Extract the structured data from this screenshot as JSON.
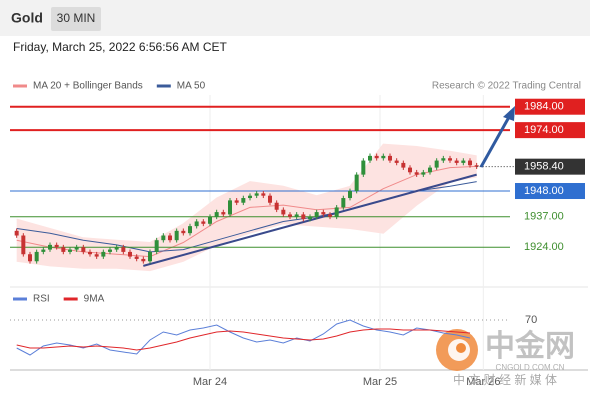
{
  "chart_data": {
    "type": "candlestick",
    "title": "Gold",
    "timeframe": "30 MIN",
    "subtitle": "Friday, March 25, 2022 6:56:56 AM CET",
    "source": "Research © 2022 Trading Central",
    "up_color": "#2f8f3a",
    "down_color": "#c73232",
    "x": [
      0,
      1,
      2,
      3,
      4,
      5,
      6,
      7,
      8,
      9,
      10,
      11,
      12,
      13,
      14,
      15,
      16,
      17,
      18,
      19,
      20,
      21,
      22,
      23,
      24,
      25,
      26,
      27,
      28,
      29,
      30,
      31,
      32,
      33,
      34,
      35,
      36,
      37,
      38,
      39,
      40,
      41,
      42,
      43,
      44,
      45,
      46,
      47,
      48,
      49,
      50,
      51,
      52,
      53,
      54,
      55,
      56,
      57,
      58,
      59,
      60,
      61,
      62,
      63,
      64,
      65,
      66,
      67,
      68,
      69
    ],
    "open": [
      1931,
      1929,
      1921,
      1918,
      1922,
      1923,
      1925,
      1924,
      1922,
      1923,
      1924,
      1922,
      1921,
      1920,
      1922,
      1923,
      1924,
      1922,
      1920,
      1919,
      1918,
      1922,
      1927,
      1929,
      1927,
      1931,
      1930,
      1933,
      1935,
      1934,
      1937,
      1939,
      1938,
      1944,
      1943,
      1945,
      1946,
      1947,
      1946,
      1943,
      1940,
      1938,
      1937,
      1938,
      1936,
      1937,
      1939,
      1938,
      1937,
      1941,
      1945,
      1948,
      1955,
      1961,
      1963,
      1962,
      1963,
      1961,
      1960,
      1958,
      1956,
      1955,
      1956,
      1958,
      1961,
      1962,
      1961,
      1960,
      1961,
      1959
    ],
    "high": [
      1932,
      1930,
      1922,
      1923,
      1924,
      1926,
      1926,
      1925,
      1924,
      1925,
      1925,
      1923,
      1922,
      1923,
      1924,
      1925,
      1925,
      1923,
      1921,
      1920,
      1923,
      1928,
      1930,
      1930,
      1932,
      1932,
      1934,
      1936,
      1936,
      1938,
      1940,
      1940,
      1945,
      1945,
      1946,
      1947,
      1948,
      1948,
      1947,
      1944,
      1941,
      1939,
      1939,
      1939,
      1938,
      1940,
      1940,
      1939,
      1942,
      1946,
      1949,
      1956,
      1962,
      1964,
      1964,
      1964,
      1964,
      1962,
      1961,
      1959,
      1957,
      1957,
      1959,
      1962,
      1963,
      1963,
      1962,
      1962,
      1962,
      1960
    ],
    "low": [
      1928,
      1920,
      1917,
      1917,
      1921,
      1922,
      1923,
      1921,
      1921,
      1922,
      1921,
      1920,
      1919,
      1919,
      1921,
      1922,
      1921,
      1919,
      1918,
      1917,
      1917,
      1921,
      1926,
      1926,
      1926,
      1929,
      1929,
      1932,
      1933,
      1933,
      1936,
      1937,
      1937,
      1942,
      1942,
      1944,
      1945,
      1945,
      1942,
      1939,
      1937,
      1936,
      1936,
      1935,
      1935,
      1936,
      1937,
      1936,
      1936,
      1940,
      1944,
      1947,
      1954,
      1960,
      1961,
      1961,
      1960,
      1959,
      1957,
      1955,
      1954,
      1954,
      1955,
      1957,
      1960,
      1960,
      1959,
      1959,
      1958,
      1957.4
    ],
    "close": [
      1929,
      1921,
      1918,
      1922,
      1923,
      1925,
      1924,
      1922,
      1923,
      1924,
      1922,
      1921,
      1920,
      1922,
      1923,
      1924,
      1922,
      1920,
      1919,
      1918,
      1922,
      1927,
      1929,
      1927,
      1931,
      1930,
      1933,
      1935,
      1934,
      1937,
      1939,
      1938,
      1944,
      1943,
      1945,
      1946,
      1947,
      1946,
      1943,
      1940,
      1938,
      1937,
      1938,
      1936,
      1937,
      1939,
      1938,
      1937,
      1941,
      1945,
      1948,
      1955,
      1961,
      1963,
      1962,
      1963,
      1961,
      1960,
      1958,
      1956,
      1955,
      1956,
      1958,
      1961,
      1962,
      1961,
      1960,
      1961,
      1959,
      1958.4
    ],
    "xlim": [
      -1,
      74
    ],
    "xticks": [
      {
        "value": 29,
        "label": "Mar 24"
      },
      {
        "value": 54.5,
        "label": "Mar 25"
      },
      {
        "value": 70,
        "label": "Mar 26"
      }
    ],
    "ylim": [
      1910,
      1989
    ],
    "overlays": [
      {
        "name": "MA 20 + Bollinger Bands",
        "color": "#f08a8a",
        "band_color": "#fde3e1",
        "x": [
          0,
          5,
          10,
          15,
          20,
          25,
          30,
          35,
          40,
          45,
          50,
          55,
          60,
          65,
          69
        ],
        "values": [
          1927,
          1924,
          1922,
          1921,
          1920,
          1926,
          1935,
          1941,
          1942,
          1940,
          1941,
          1949,
          1955,
          1958,
          1958.5
        ],
        "upper": [
          1936,
          1932,
          1928,
          1927,
          1926,
          1934,
          1945,
          1952,
          1950,
          1946,
          1950,
          1968,
          1967,
          1965,
          1963
        ],
        "lower": [
          1918,
          1916,
          1915,
          1915,
          1914,
          1918,
          1925,
          1930,
          1934,
          1933,
          1932,
          1930,
          1942,
          1952,
          1954
        ]
      },
      {
        "name": "MA 50",
        "color": "#3b5b9a",
        "x": [
          0,
          5,
          10,
          15,
          20,
          25,
          30,
          35,
          40,
          45,
          50,
          55,
          60,
          65,
          69
        ],
        "values": [
          1932,
          1930,
          1927,
          1925,
          1922,
          1923,
          1927,
          1931,
          1935,
          1937,
          1940,
          1944,
          1948,
          1950,
          1952
        ]
      }
    ],
    "trendline": {
      "x": [
        19,
        69
      ],
      "values": [
        1916,
        1955
      ],
      "color": "#3a4a8c"
    },
    "levels": [
      {
        "value": 1984,
        "label": "1984.00",
        "color": "#e02020",
        "boxed": true
      },
      {
        "value": 1974,
        "label": "1974.00",
        "color": "#e02020",
        "boxed": true
      },
      {
        "value": 1948,
        "label": "1948.00",
        "color": "#2f6fd0",
        "boxed": true
      },
      {
        "value": 1937,
        "label": "1937.00",
        "color": "#3f8f2f",
        "boxed": false
      },
      {
        "value": 1924,
        "label": "1924.00",
        "color": "#3f8f2f",
        "boxed": false
      }
    ],
    "current": {
      "value": 1958.4,
      "label": "1958.40",
      "color": "#333333"
    },
    "rsi": {
      "ylim": [
        20,
        80
      ],
      "yticks": [
        70
      ],
      "series": [
        {
          "name": "RSI",
          "color": "#5b7fd8",
          "x": [
            0,
            2,
            4,
            6,
            8,
            10,
            12,
            14,
            16,
            18,
            20,
            22,
            24,
            26,
            28,
            30,
            32,
            34,
            36,
            38,
            40,
            42,
            44,
            46,
            48,
            50,
            52,
            54,
            56,
            58,
            60,
            62,
            64,
            66,
            68
          ],
          "values": [
            42,
            35,
            44,
            47,
            45,
            42,
            46,
            40,
            38,
            36,
            50,
            58,
            55,
            60,
            62,
            65,
            58,
            52,
            48,
            50,
            47,
            52,
            49,
            56,
            66,
            70,
            64,
            60,
            58,
            55,
            62,
            60,
            57,
            55,
            52
          ]
        },
        {
          "name": "9MA",
          "color": "#e0262a",
          "x": [
            0,
            2,
            4,
            6,
            8,
            10,
            12,
            14,
            16,
            18,
            20,
            22,
            24,
            26,
            28,
            30,
            32,
            34,
            36,
            38,
            40,
            42,
            44,
            46,
            48,
            50,
            52,
            54,
            56,
            58,
            60,
            62,
            64,
            66,
            68
          ],
          "values": [
            45,
            42,
            42,
            43,
            44,
            43,
            44,
            43,
            42,
            40,
            42,
            45,
            48,
            52,
            55,
            58,
            59,
            58,
            56,
            54,
            52,
            51,
            50,
            51,
            54,
            58,
            60,
            61,
            61,
            60,
            60,
            60,
            59,
            58,
            57
          ]
        }
      ]
    }
  },
  "watermark": {
    "name": "中金网",
    "url": "CNGOLD.COM.CN",
    "tagline": "中 文 财 经 新 媒 体"
  }
}
